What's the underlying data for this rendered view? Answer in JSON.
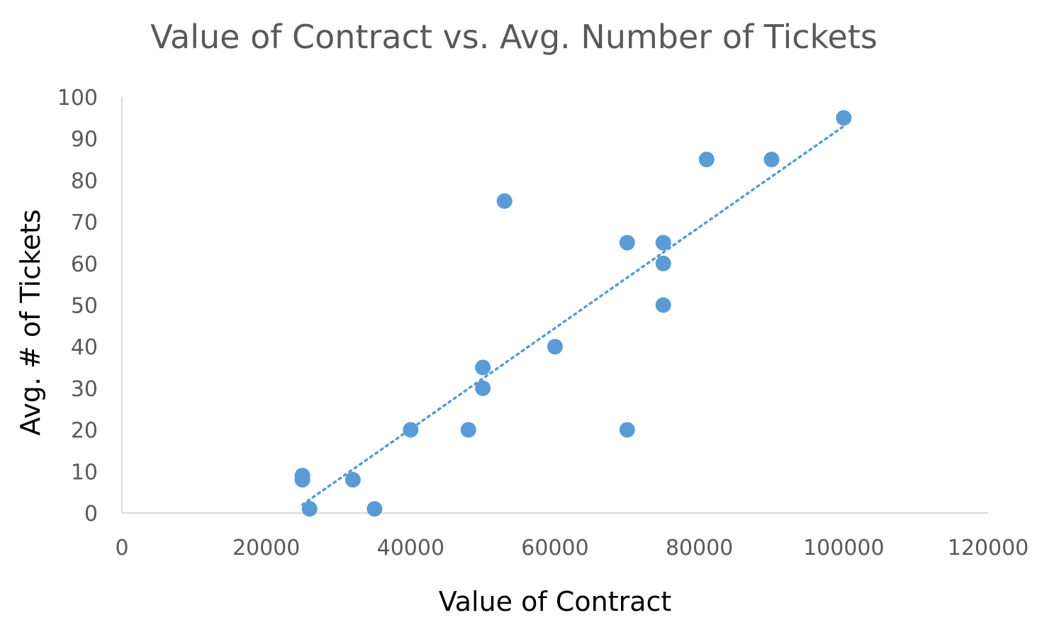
{
  "chart_data": {
    "type": "scatter",
    "title": "Value of Contract vs. Avg. Number of Tickets",
    "xlabel": "Value of Contract",
    "ylabel": "Avg. # of Tickets",
    "xlim": [
      0,
      120000
    ],
    "ylim": [
      0,
      100
    ],
    "x_ticks": [
      "0",
      "20000",
      "40000",
      "60000",
      "80000",
      "100000",
      "120000"
    ],
    "y_ticks": [
      "0",
      "10",
      "20",
      "30",
      "40",
      "50",
      "60",
      "70",
      "80",
      "90",
      "100"
    ],
    "grid": false,
    "legend": "none",
    "colors": {
      "marker": "#5b9bd5",
      "trendline": "#5b9bd5",
      "axis": "#d9d9d9"
    },
    "series": [
      {
        "points": [
          [
            25000,
            9
          ],
          [
            25000,
            8
          ],
          [
            26000,
            1
          ],
          [
            32000,
            8
          ],
          [
            35000,
            1
          ],
          [
            40000,
            20
          ],
          [
            48000,
            20
          ],
          [
            50000,
            35
          ],
          [
            50000,
            30
          ],
          [
            53000,
            75
          ],
          [
            60000,
            40
          ],
          [
            70000,
            65
          ],
          [
            70000,
            20
          ],
          [
            75000,
            65
          ],
          [
            75000,
            60
          ],
          [
            75000,
            50
          ],
          [
            81000,
            85
          ],
          [
            90000,
            85
          ],
          [
            100000,
            95
          ]
        ],
        "trendline": {
          "type": "linear",
          "from": [
            25000,
            2
          ],
          "to": [
            100000,
            93
          ]
        }
      }
    ]
  }
}
